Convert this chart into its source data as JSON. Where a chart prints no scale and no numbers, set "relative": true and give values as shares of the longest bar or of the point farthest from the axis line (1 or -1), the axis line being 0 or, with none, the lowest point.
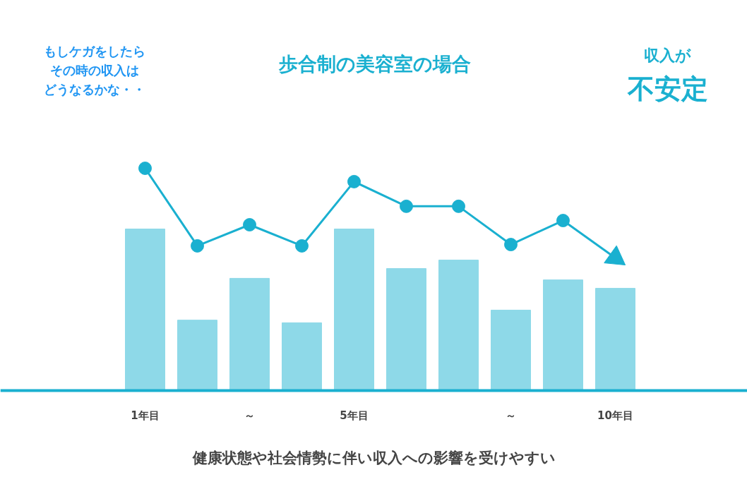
{
  "chart_data": {
    "type": "bar",
    "relative": true,
    "title": "歩合制の美容室の場合",
    "categories": [
      "1年目",
      null,
      "～",
      null,
      "5年目",
      null,
      null,
      "～",
      null,
      "10年目"
    ],
    "series": [
      {
        "color": "#8ed9e8",
        "values": [
          0.727,
          0.317,
          0.505,
          0.305,
          0.727,
          0.549,
          0.587,
          0.362,
          0.498,
          0.46
        ]
      },
      {
        "type": "line",
        "color": "#1ab0d0",
        "marker": "circle",
        "values": [
          1,
          0.651,
          0.746,
          0.651,
          0.94,
          0.829,
          0.829,
          0.657,
          0.765,
          0.597
        ]
      }
    ],
    "annotations": [
      "もしケガをしたら",
      "その時の収入は",
      "どうなるかな・・",
      "収入が",
      "不安定",
      "健康状態や社会情勢に伴い収入への影響を受けやすい"
    ],
    "grid": false
  }
}
